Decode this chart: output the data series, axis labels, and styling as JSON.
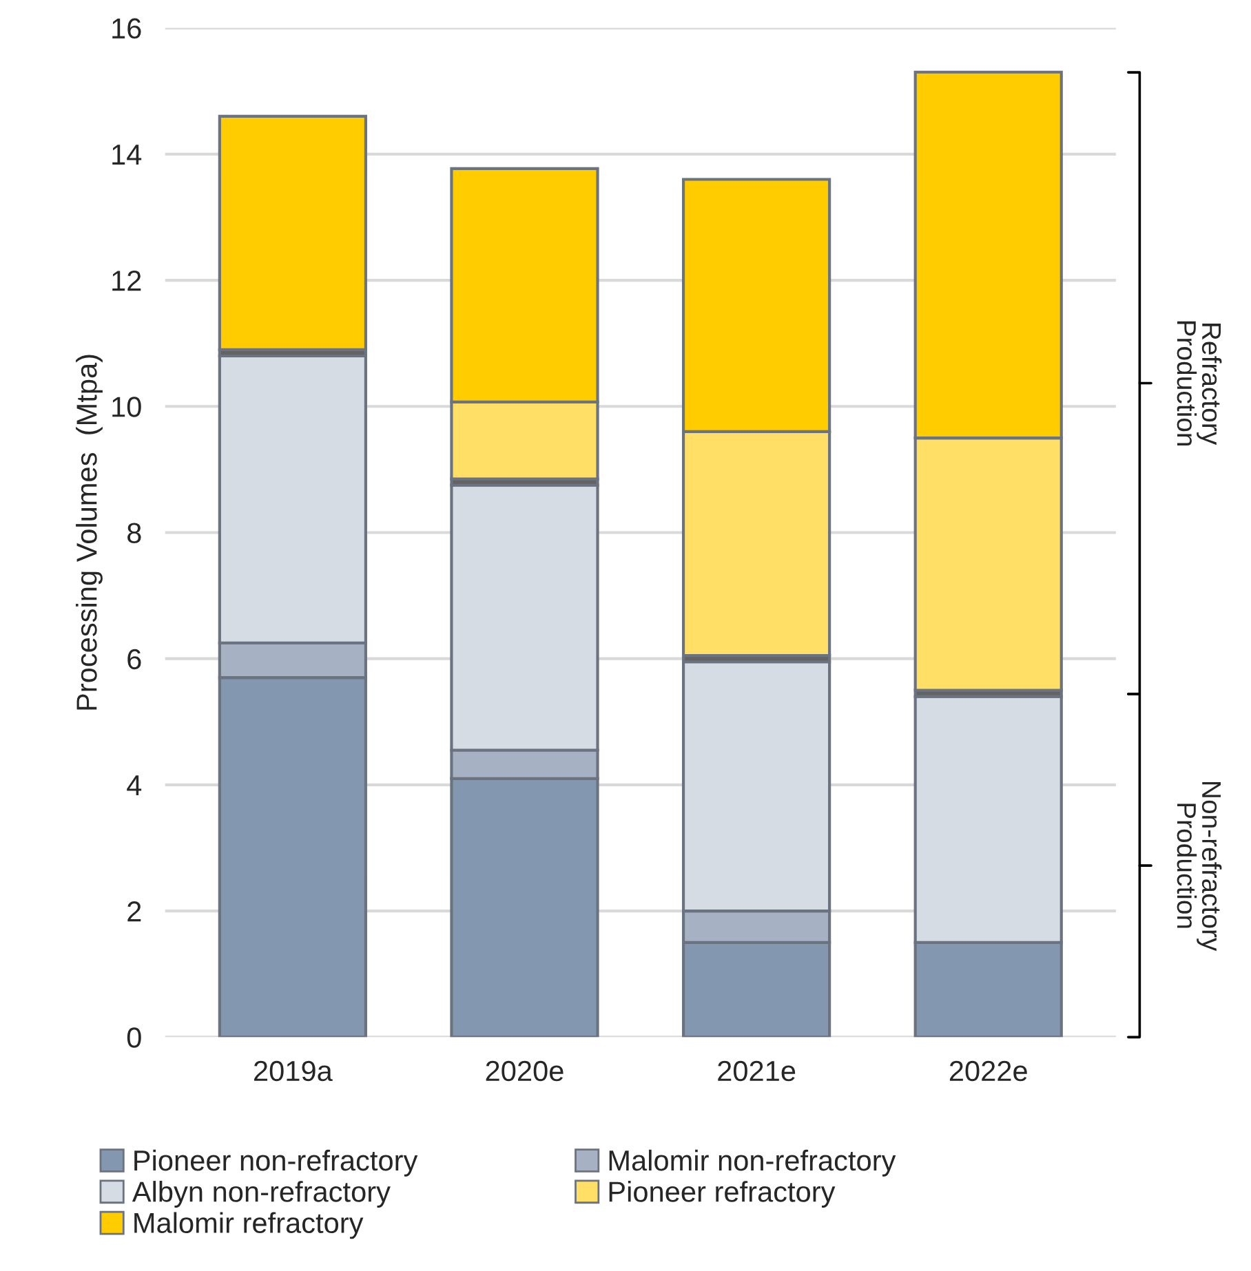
{
  "chart_data": {
    "type": "bar",
    "stacked": true,
    "ylabel": "Processing Volumes  (Mtpa)",
    "categories": [
      "2019a",
      "2020e",
      "2021e",
      "2022e"
    ],
    "series": [
      {
        "name": "Pioneer non-refractory",
        "color": "#8497b0",
        "values": [
          5.7,
          4.1,
          1.5,
          1.5
        ]
      },
      {
        "name": "Malomir non-refractory",
        "color": "#a6b2c4",
        "values": [
          0.55,
          0.45,
          0.5,
          0
        ]
      },
      {
        "name": "Albyn non-refractory",
        "color": "#d6dce4",
        "values": [
          4.55,
          4.2,
          3.95,
          3.9
        ]
      },
      {
        "color": "#636363",
        "values": [
          0.1,
          0.1,
          0.1,
          0.1
        ]
      },
      {
        "name": "Pioneer refractory",
        "color": "#ffdf66",
        "values": [
          0,
          1.22,
          3.55,
          4.0
        ]
      },
      {
        "name": "Malomir refractory",
        "color": "#ffcc00",
        "values": [
          3.7,
          3.7,
          4.0,
          5.8
        ]
      }
    ],
    "ylim": [
      0,
      16
    ],
    "yticks": [
      0,
      2,
      4,
      6,
      8,
      10,
      12,
      14,
      16
    ],
    "grid": "y",
    "legend": "bottom",
    "annotations": [
      "Refractory\nProduction",
      "Non-refractory\nProduction"
    ]
  }
}
